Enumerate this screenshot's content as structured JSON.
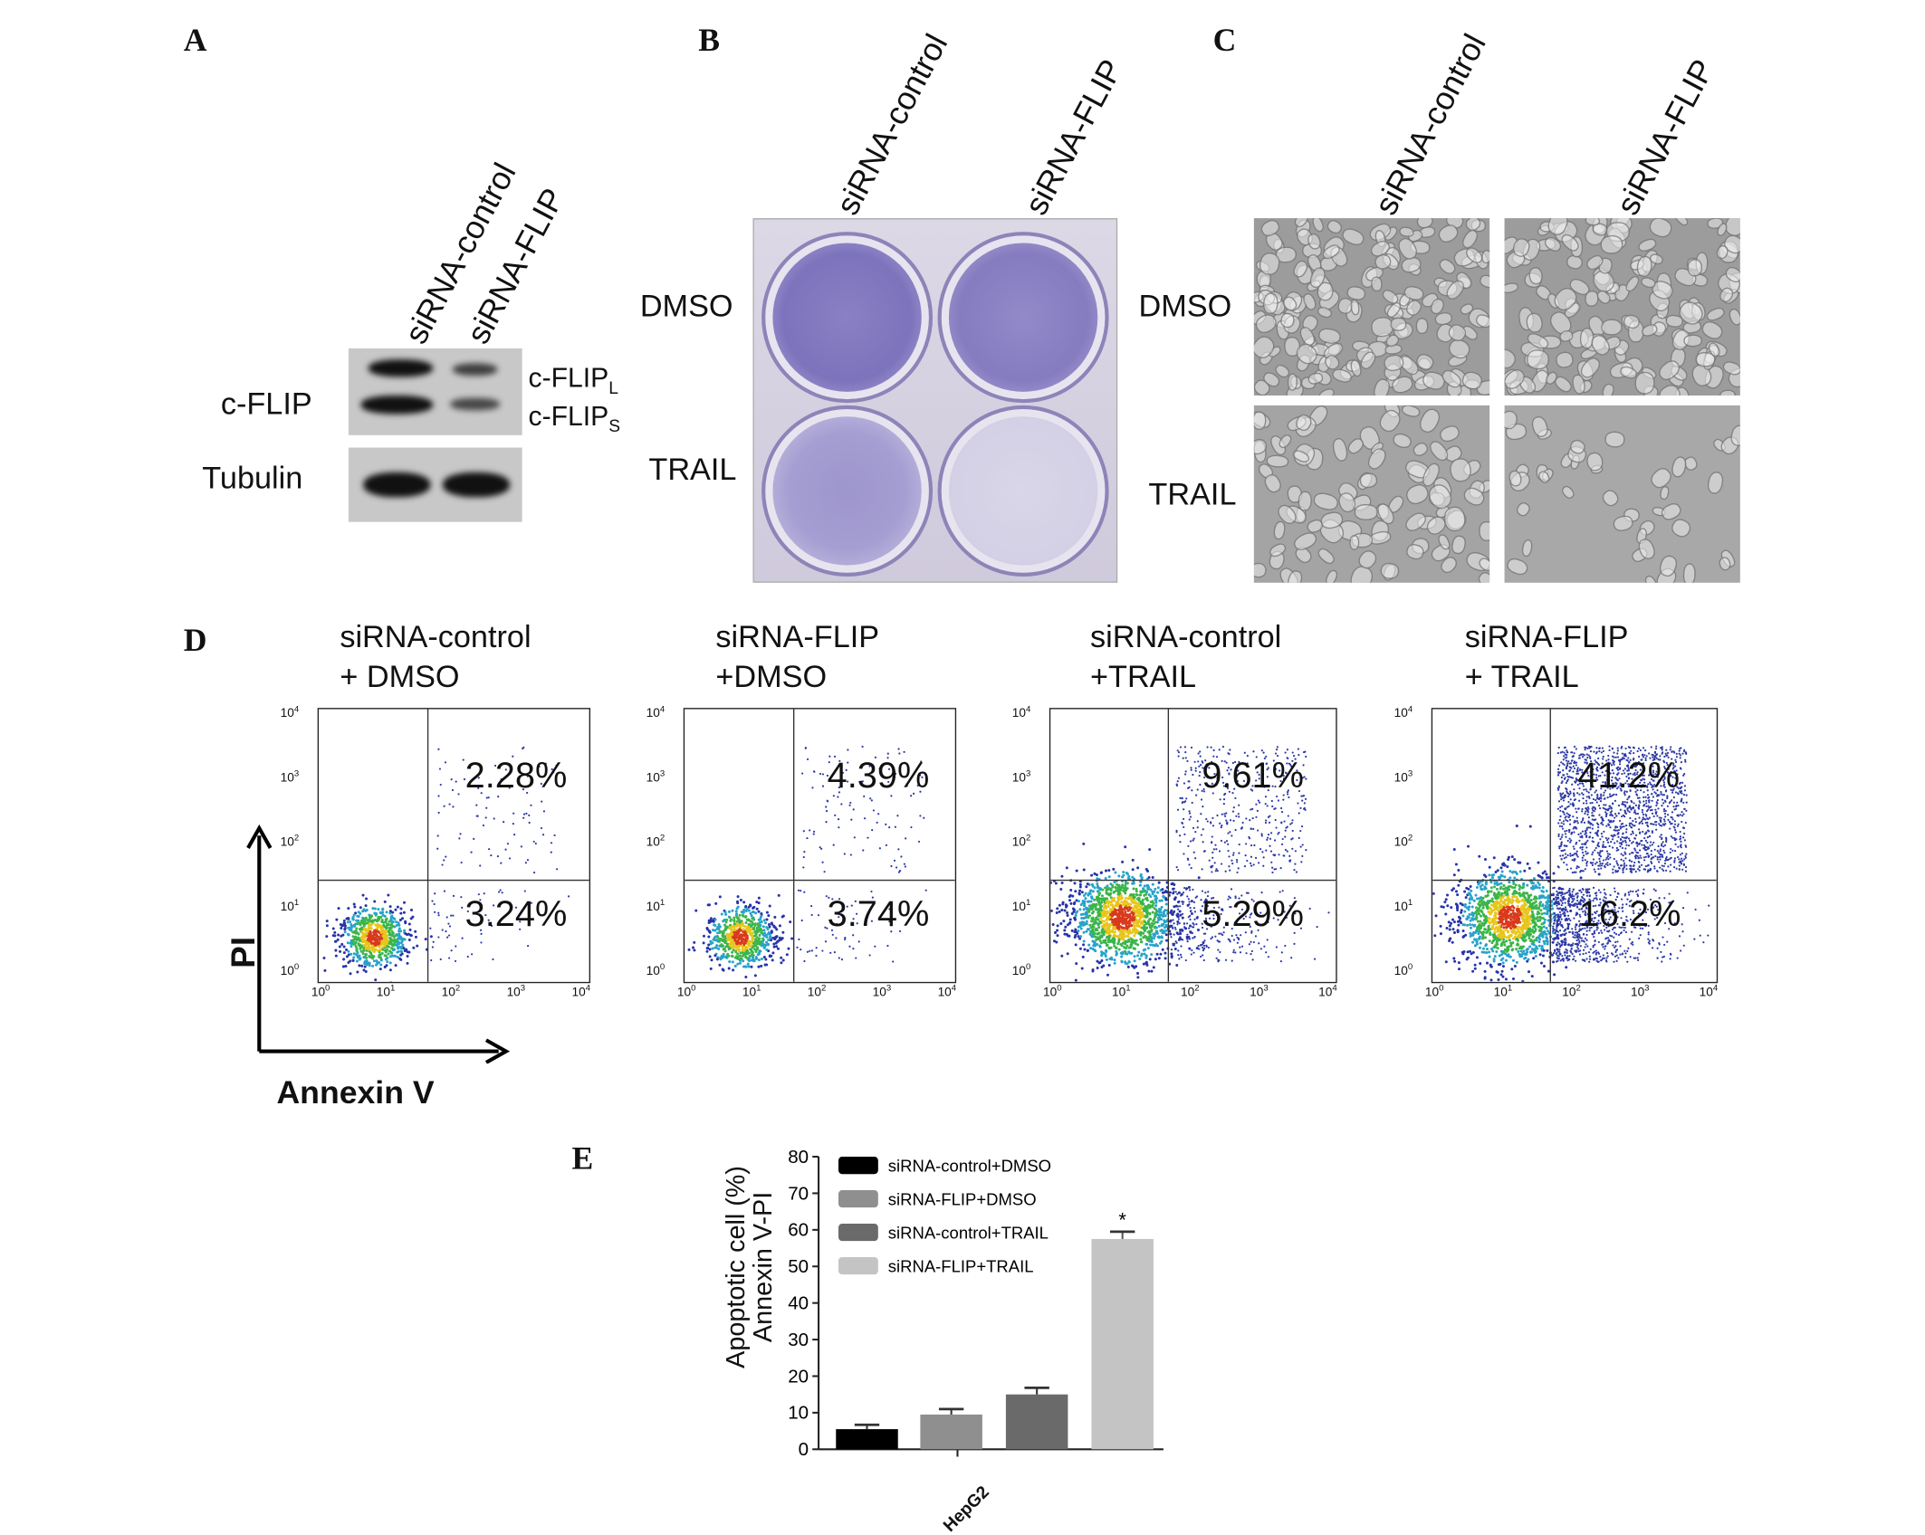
{
  "panel_labels": {
    "A": "A",
    "B": "B",
    "C": "C",
    "D": "D",
    "E": "E"
  },
  "panelA": {
    "lanes": [
      "siRNA-control",
      "siRNA-FLIP"
    ],
    "rows": [
      "c-FLIP",
      "Tubulin"
    ],
    "band_labels": [
      {
        "text": "c-FLIP",
        "sub": "L"
      },
      {
        "text": "c-FLIP",
        "sub": "S"
      }
    ]
  },
  "panelB": {
    "columns": [
      "siRNA-control",
      "siRNA-FLIP"
    ],
    "rows": [
      "DMSO",
      "TRAIL"
    ]
  },
  "panelC": {
    "columns": [
      "siRNA-control",
      "siRNA-FLIP"
    ],
    "rows": [
      "DMSO",
      "TRAIL"
    ]
  },
  "panelD": {
    "y_axis": "PI",
    "x_axis": "Annexin V",
    "tick_labels": [
      "10",
      "10",
      "10",
      "10",
      "10"
    ],
    "tick_exponents": [
      "0",
      "1",
      "2",
      "3",
      "4"
    ],
    "plots": [
      {
        "title_line1": "siRNA-control",
        "title_line2": "+ DMSO",
        "upper_right": "2.28%",
        "lower_right": "3.24%"
      },
      {
        "title_line1": "siRNA-FLIP",
        "title_line2": "+DMSO",
        "upper_right": "4.39%",
        "lower_right": "3.74%"
      },
      {
        "title_line1": "siRNA-control",
        "title_line2": "+TRAIL",
        "upper_right": "9.61%",
        "lower_right": "5.29%"
      },
      {
        "title_line1": "siRNA-FLIP",
        "title_line2": "+ TRAIL",
        "upper_right": "41.2%",
        "lower_right": "16.2%"
      }
    ]
  },
  "chart_data": {
    "type": "bar",
    "ylabel_line1": "Apoptotic cell (%)",
    "ylabel_line2": "Annexin V-PI",
    "xlabel": "HepG2",
    "ylim": [
      0,
      80
    ],
    "yticks": [
      0,
      10,
      20,
      30,
      40,
      50,
      60,
      70,
      80
    ],
    "legend_position": "top-right",
    "series": [
      {
        "name": "siRNA-control+DMSO",
        "value": 5.5,
        "error": 1.2,
        "color": "#000000",
        "annotation": ""
      },
      {
        "name": "siRNA-FLIP+DMSO",
        "value": 9.5,
        "error": 1.5,
        "color": "#8f8f8f",
        "annotation": ""
      },
      {
        "name": "siRNA-control+TRAIL",
        "value": 15.0,
        "error": 1.8,
        "color": "#6a6a6a",
        "annotation": ""
      },
      {
        "name": "siRNA-FLIP+TRAIL",
        "value": 57.5,
        "error": 2.0,
        "color": "#c4c4c4",
        "annotation": "*"
      }
    ]
  }
}
